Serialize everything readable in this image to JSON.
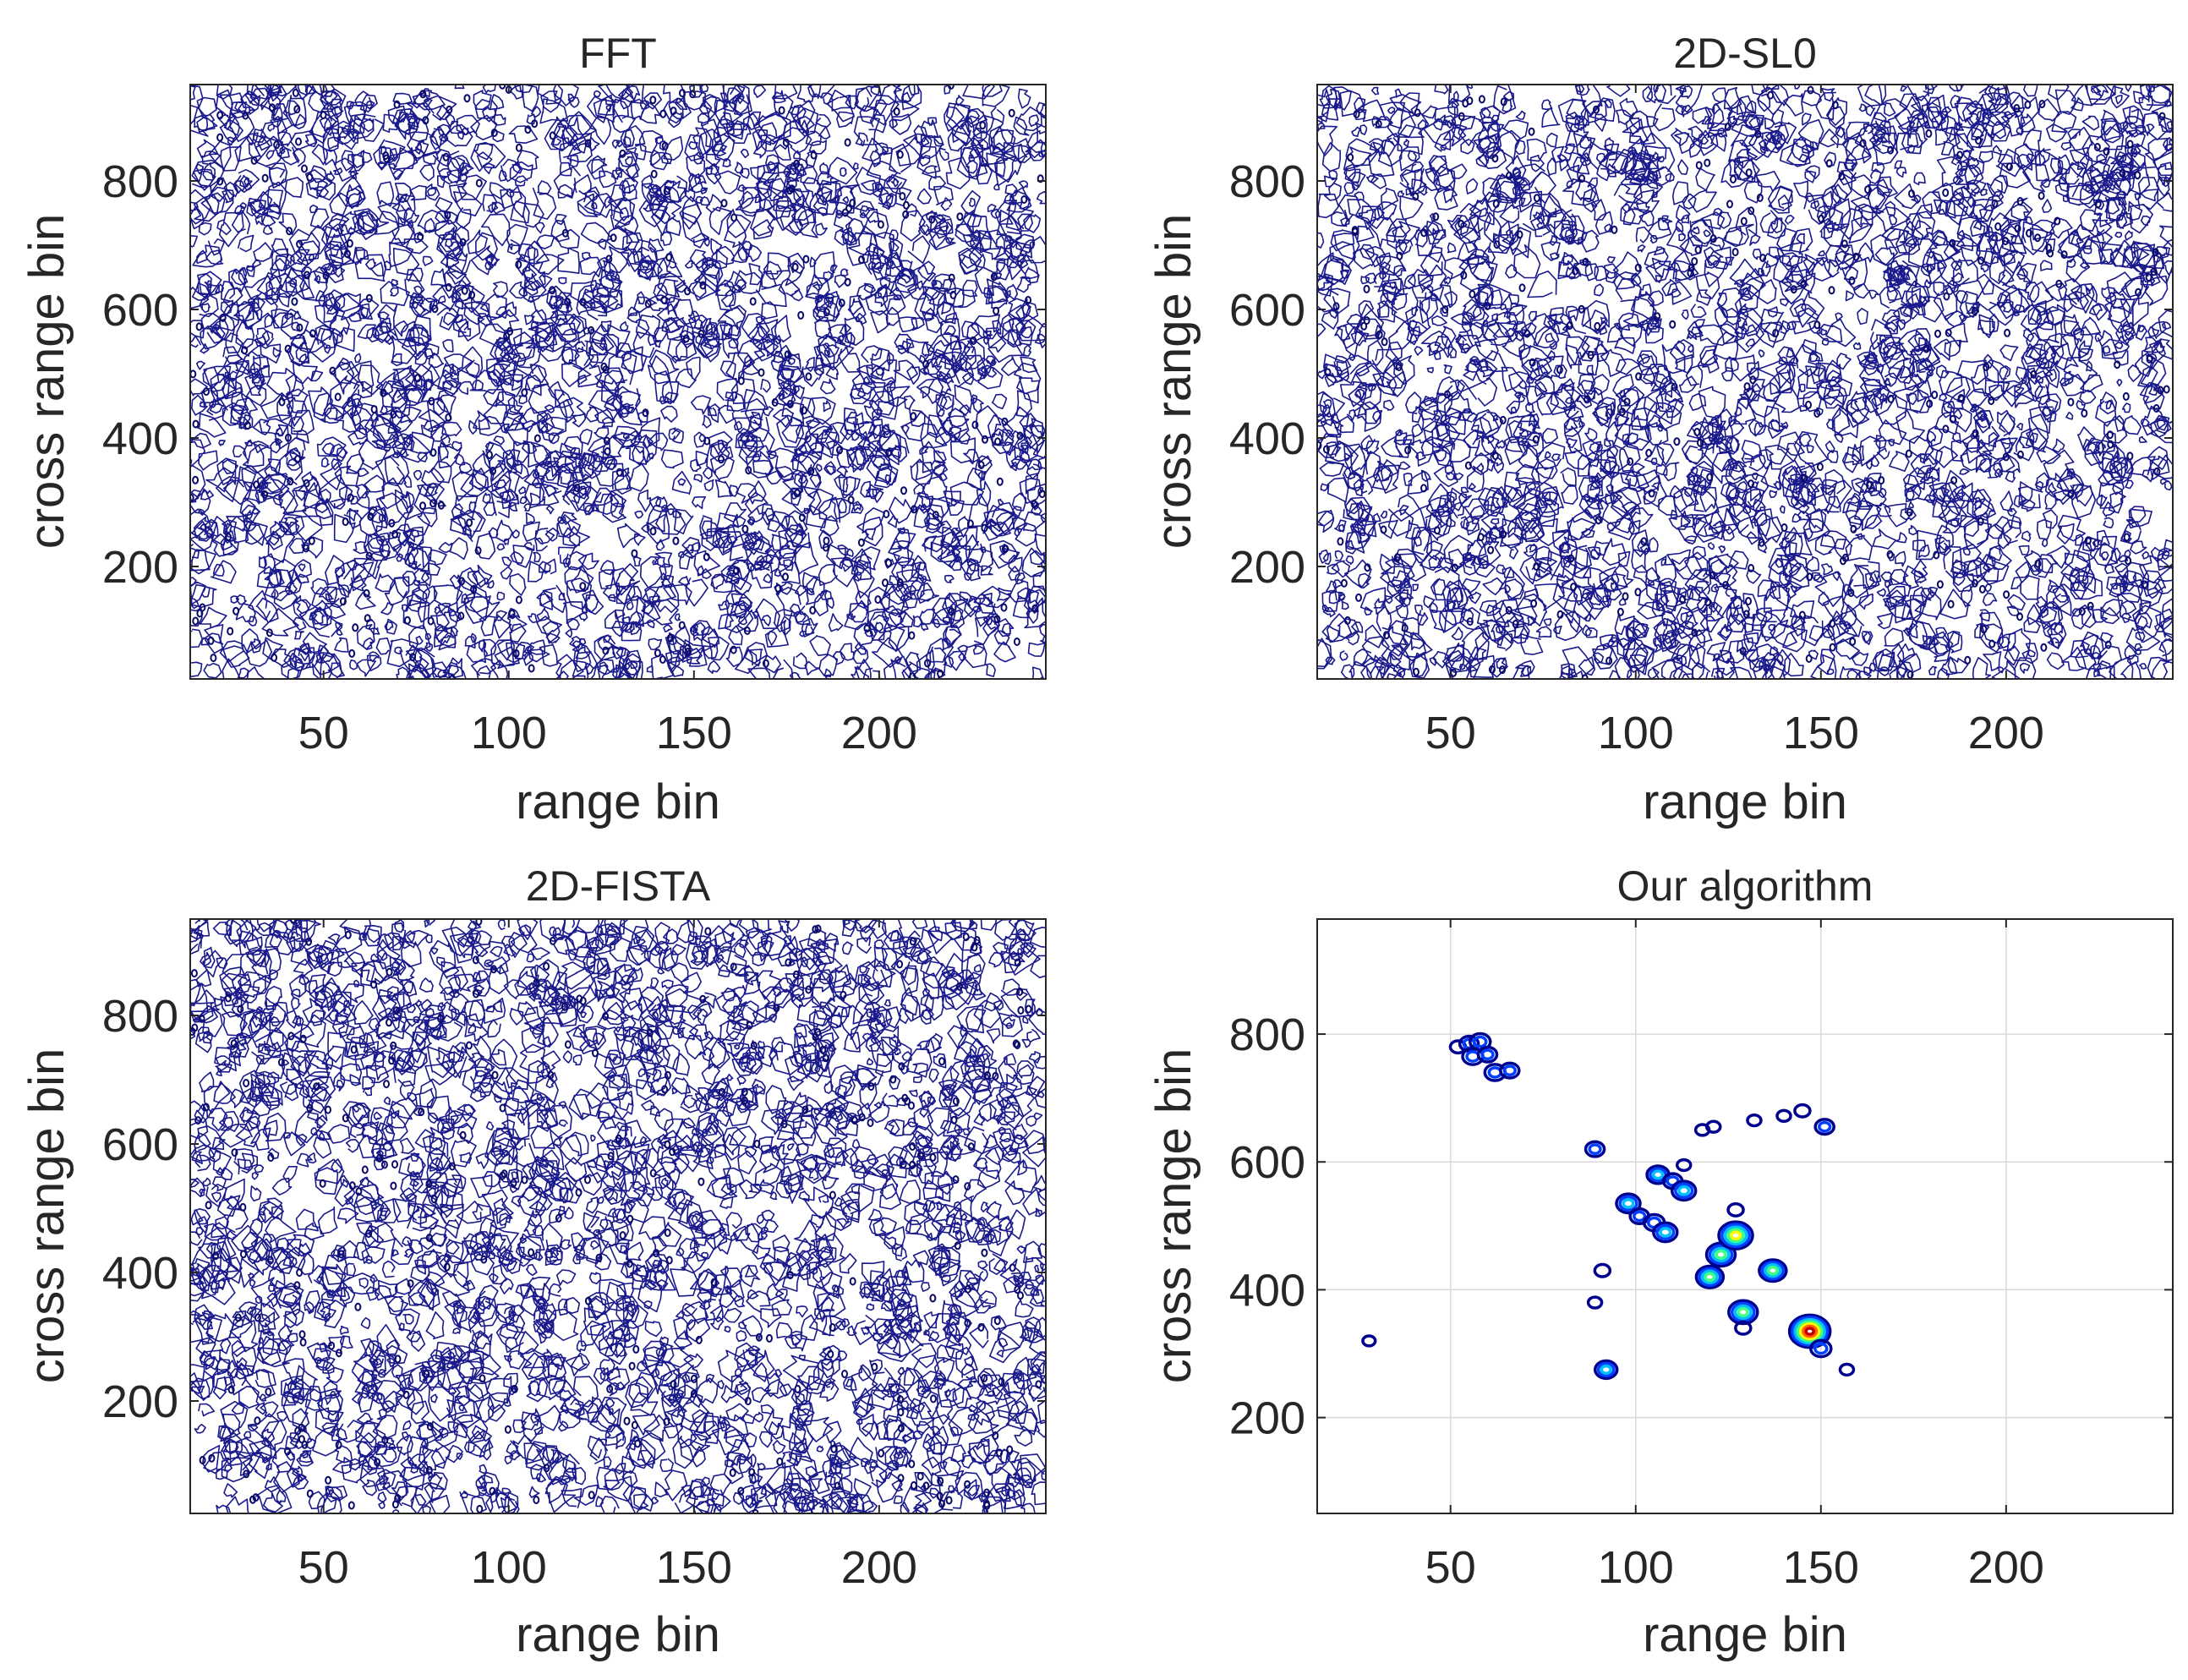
{
  "figure": {
    "description_layout": "2x2 grid of contour plots",
    "colors": {
      "noise_contour": "#1a1a8c",
      "colormap": [
        "#00008f",
        "#0040ff",
        "#00c0ff",
        "#40ff80",
        "#ffff00",
        "#ff6000",
        "#c00000"
      ],
      "axis": "#262626",
      "grid": "#d9d9d9"
    }
  },
  "chart_data": [
    {
      "type": "contour",
      "title": "FFT",
      "xlabel": "range bin",
      "ylabel": "cross range bin",
      "xlim": [
        14,
        245
      ],
      "ylim": [
        25,
        950
      ],
      "xticks": [
        50,
        100,
        150,
        200
      ],
      "yticks": [
        200,
        400,
        600,
        800
      ],
      "grid": false,
      "content": "dense noise-like contour lines over entire image"
    },
    {
      "type": "contour",
      "title": "2D-SL0",
      "xlabel": "range bin",
      "ylabel": "cross range bin",
      "xlim": [
        14,
        245
      ],
      "ylim": [
        25,
        950
      ],
      "xticks": [
        50,
        100,
        150,
        200
      ],
      "yticks": [
        200,
        400,
        600,
        800
      ],
      "grid": false,
      "content": "dense noise-like contour lines over entire image"
    },
    {
      "type": "contour",
      "title": "2D-FISTA",
      "xlabel": "range bin",
      "ylabel": "cross range bin",
      "xlim": [
        14,
        245
      ],
      "ylim": [
        25,
        950
      ],
      "xticks": [
        50,
        100,
        150,
        200
      ],
      "yticks": [
        200,
        400,
        600,
        800
      ],
      "grid": false,
      "content": "dense noise-like contour lines over entire image"
    },
    {
      "type": "contour",
      "title": "Our algorithm",
      "xlabel": "range bin",
      "ylabel": "cross range bin",
      "xlim": [
        14,
        245
      ],
      "ylim": [
        50,
        980
      ],
      "xticks": [
        50,
        100,
        150,
        200
      ],
      "yticks": [
        200,
        400,
        600,
        800
      ],
      "grid": true,
      "scatterers": [
        {
          "x": 52,
          "y": 780,
          "peak": 0.2
        },
        {
          "x": 55,
          "y": 785,
          "peak": 0.3
        },
        {
          "x": 58,
          "y": 788,
          "peak": 0.35
        },
        {
          "x": 56,
          "y": 765,
          "peak": 0.35
        },
        {
          "x": 60,
          "y": 768,
          "peak": 0.3
        },
        {
          "x": 62,
          "y": 740,
          "peak": 0.35
        },
        {
          "x": 66,
          "y": 743,
          "peak": 0.3
        },
        {
          "x": 89,
          "y": 620,
          "peak": 0.3
        },
        {
          "x": 91,
          "y": 430,
          "peak": 0.2
        },
        {
          "x": 89,
          "y": 380,
          "peak": 0.15
        },
        {
          "x": 92,
          "y": 275,
          "peak": 0.4
        },
        {
          "x": 98,
          "y": 535,
          "peak": 0.45
        },
        {
          "x": 101,
          "y": 515,
          "peak": 0.3
        },
        {
          "x": 105,
          "y": 505,
          "peak": 0.35
        },
        {
          "x": 106,
          "y": 580,
          "peak": 0.4
        },
        {
          "x": 110,
          "y": 570,
          "peak": 0.3
        },
        {
          "x": 108,
          "y": 490,
          "peak": 0.45
        },
        {
          "x": 113,
          "y": 555,
          "peak": 0.45
        },
        {
          "x": 113,
          "y": 595,
          "peak": 0.15
        },
        {
          "x": 120,
          "y": 420,
          "peak": 0.55
        },
        {
          "x": 118,
          "y": 650,
          "peak": 0.15
        },
        {
          "x": 121,
          "y": 655,
          "peak": 0.15
        },
        {
          "x": 123,
          "y": 455,
          "peak": 0.6
        },
        {
          "x": 127,
          "y": 485,
          "peak": 0.75
        },
        {
          "x": 129,
          "y": 365,
          "peak": 0.6
        },
        {
          "x": 129,
          "y": 340,
          "peak": 0.2
        },
        {
          "x": 127,
          "y": 525,
          "peak": 0.2
        },
        {
          "x": 132,
          "y": 665,
          "peak": 0.15
        },
        {
          "x": 137,
          "y": 430,
          "peak": 0.55
        },
        {
          "x": 140,
          "y": 672,
          "peak": 0.15
        },
        {
          "x": 145,
          "y": 680,
          "peak": 0.2
        },
        {
          "x": 147,
          "y": 335,
          "peak": 0.95
        },
        {
          "x": 150,
          "y": 308,
          "peak": 0.35
        },
        {
          "x": 151,
          "y": 655,
          "peak": 0.3
        },
        {
          "x": 157,
          "y": 275,
          "peak": 0.15
        },
        {
          "x": 28,
          "y": 320,
          "peak": 0.12
        }
      ]
    }
  ]
}
